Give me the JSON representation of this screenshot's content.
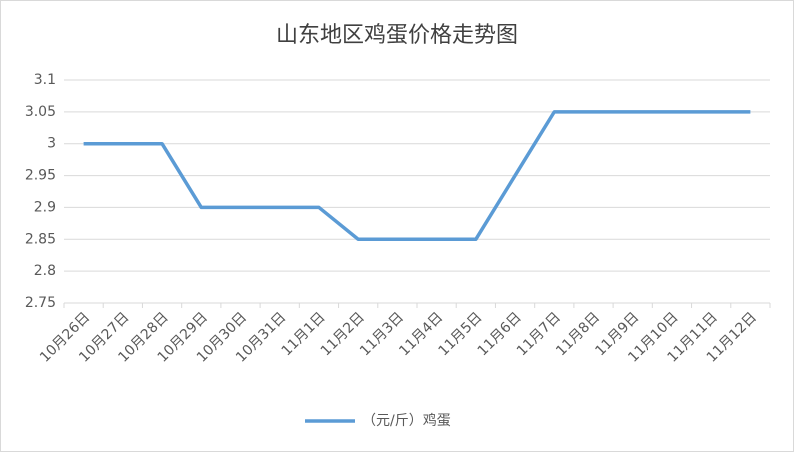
{
  "chart_data": {
    "type": "line",
    "title": "山东地区鸡蛋价格走势图",
    "categories": [
      "10月26日",
      "10月27日",
      "10月28日",
      "10月29日",
      "10月30日",
      "10月31日",
      "11月1日",
      "11月2日",
      "11月3日",
      "11月4日",
      "11月5日",
      "11月6日",
      "11月7日",
      "11月8日",
      "11月9日",
      "11月10日",
      "11月11日",
      "11月12日"
    ],
    "series": [
      {
        "name": "（元/斤）鸡蛋",
        "color": "#5b9bd5",
        "values": [
          3,
          3,
          3,
          2.9,
          2.9,
          2.9,
          2.9,
          2.85,
          2.85,
          2.85,
          2.85,
          2.95,
          3.05,
          3.05,
          3.05,
          3.05,
          3.05,
          3.05
        ]
      }
    ],
    "ylim": [
      2.75,
      3.1
    ],
    "yticks": [
      2.75,
      2.8,
      2.85,
      2.9,
      2.95,
      3,
      3.05,
      3.1
    ],
    "grid": true,
    "legend": "bottom"
  }
}
